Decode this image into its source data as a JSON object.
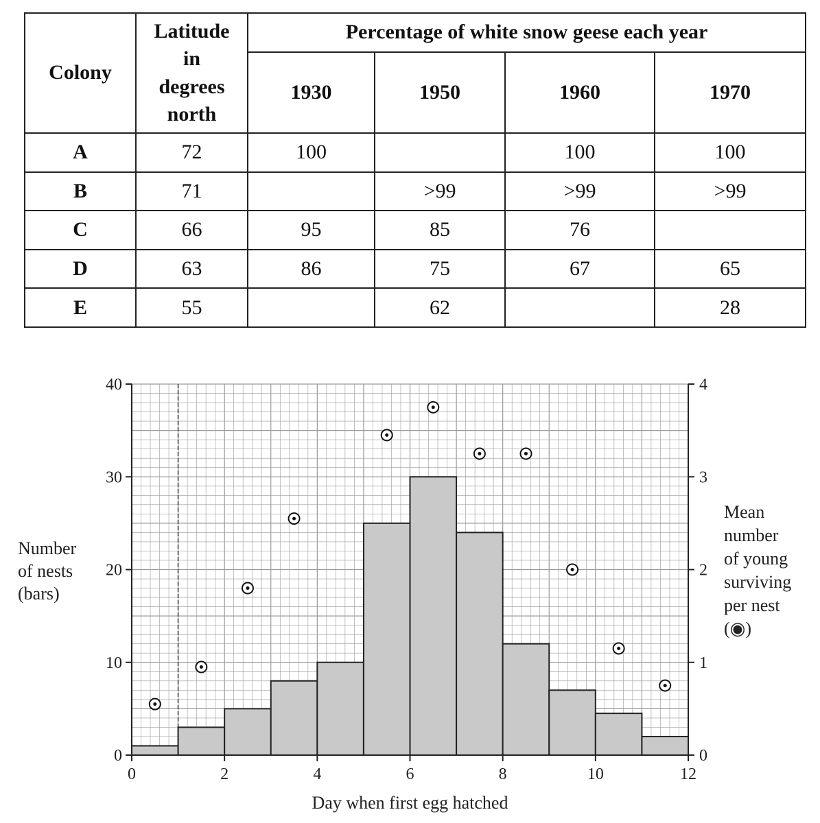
{
  "table": {
    "headers": {
      "colony": "Colony",
      "latitude": [
        "Latitude",
        "in",
        "degrees",
        "north"
      ],
      "percentage": "Percentage of white snow geese each year",
      "years": [
        "1930",
        "1950",
        "1960",
        "1970"
      ]
    },
    "rows": [
      {
        "colony": "A",
        "latitude": "72",
        "values": [
          "100",
          "",
          "100",
          "100"
        ]
      },
      {
        "colony": "B",
        "latitude": "71",
        "values": [
          "",
          ">99",
          ">99",
          ">99"
        ]
      },
      {
        "colony": "C",
        "latitude": "66",
        "values": [
          "95",
          "85",
          "76",
          ""
        ]
      },
      {
        "colony": "D",
        "latitude": "63",
        "values": [
          "86",
          "75",
          "67",
          "65"
        ]
      },
      {
        "colony": "E",
        "latitude": "55",
        "values": [
          "",
          "62",
          "",
          "28"
        ]
      }
    ]
  },
  "chart_data": {
    "type": "bar",
    "xlabel": "Day when first egg hatched",
    "ylabel_left": [
      "Number",
      "of nests",
      "(bars)"
    ],
    "ylabel_right": [
      "Mean",
      "number",
      "of young",
      "surviving",
      "per nest",
      "(◉)"
    ],
    "x_ticks": [
      "0",
      "2",
      "4",
      "6",
      "8",
      "10",
      "12"
    ],
    "y_left_ticks": [
      "0",
      "10",
      "20",
      "30",
      "40"
    ],
    "y_right_ticks": [
      "0",
      "1",
      "2",
      "3",
      "4"
    ],
    "xlim": [
      0,
      12
    ],
    "ylim_left": [
      0,
      40
    ],
    "ylim_right": [
      0,
      4
    ],
    "grid": true,
    "bars": [
      {
        "day": 1,
        "nests": 1
      },
      {
        "day": 2,
        "nests": 3
      },
      {
        "day": 3,
        "nests": 5
      },
      {
        "day": 4,
        "nests": 8
      },
      {
        "day": 5,
        "nests": 10
      },
      {
        "day": 6,
        "nests": 25
      },
      {
        "day": 7,
        "nests": 30
      },
      {
        "day": 8,
        "nests": 24
      },
      {
        "day": 9,
        "nests": 12
      },
      {
        "day": 10,
        "nests": 7
      },
      {
        "day": 11,
        "nests": 4.5
      },
      {
        "day": 12,
        "nests": 2
      }
    ],
    "points": [
      {
        "day": 1,
        "mean_young": 0.55
      },
      {
        "day": 2,
        "mean_young": 0.95
      },
      {
        "day": 3,
        "mean_young": 1.8
      },
      {
        "day": 4,
        "mean_young": 2.55
      },
      {
        "day": 6,
        "mean_young": 3.45
      },
      {
        "day": 7,
        "mean_young": 3.75
      },
      {
        "day": 8,
        "mean_young": 3.25
      },
      {
        "day": 9,
        "mean_young": 3.25
      },
      {
        "day": 10,
        "mean_young": 2.0
      },
      {
        "day": 11,
        "mean_young": 1.15
      },
      {
        "day": 12,
        "mean_young": 0.75
      }
    ],
    "colors": {
      "bar_fill": "#c9c9c9",
      "grid": "#9a9a9a",
      "axis": "#222222"
    }
  }
}
